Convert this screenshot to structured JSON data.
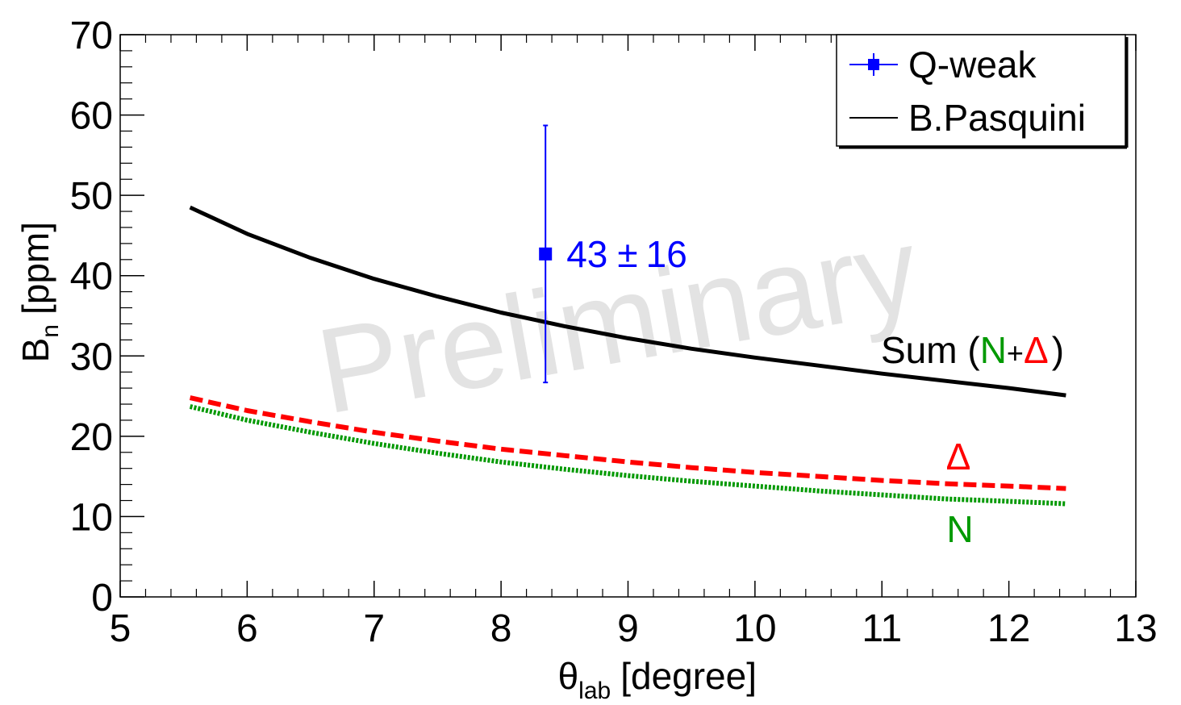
{
  "chart_data": {
    "type": "line",
    "xlabel": "θ",
    "xlabel_sub": "lab",
    "xlabel_unit": "[degree]",
    "ylabel": "B",
    "ylabel_sub": "n",
    "ylabel_unit": "[ppm]",
    "xlim": [
      5,
      13
    ],
    "ylim": [
      0,
      70
    ],
    "x_ticks": [
      "5",
      "6",
      "7",
      "8",
      "9",
      "10",
      "11",
      "12",
      "13"
    ],
    "y_ticks": [
      "0",
      "10",
      "20",
      "30",
      "40",
      "50",
      "60",
      "70"
    ],
    "grid": false,
    "legend_position": "top-right",
    "legend": [
      {
        "label": "Q-weak",
        "color": "#0000ff",
        "style": "marker-errorbar"
      },
      {
        "label": "B.Pasquini",
        "color": "#000000",
        "style": "solid"
      }
    ],
    "point": {
      "name": "Q-weak",
      "x": 8.35,
      "y": 42.7,
      "err": 16,
      "label_value": "43",
      "label_pm": "±",
      "label_err": "16",
      "color": "#0000ff"
    },
    "x": [
      5.55,
      6.0,
      6.5,
      7.0,
      7.5,
      8.0,
      8.5,
      9.0,
      9.5,
      10.0,
      10.5,
      11.0,
      11.5,
      12.0,
      12.45
    ],
    "series": [
      {
        "name": "B.Pasquini",
        "color": "#000000",
        "style": "solid",
        "values": [
          48.5,
          45.2,
          42.2,
          39.6,
          37.4,
          35.4,
          33.7,
          32.2,
          30.9,
          29.8,
          28.8,
          27.8,
          26.9,
          26.0,
          25.1
        ]
      },
      {
        "color": "#ff0000",
        "style": "dashed",
        "values": [
          24.8,
          23.2,
          21.8,
          20.5,
          19.4,
          18.4,
          17.6,
          16.8,
          16.1,
          15.5,
          15.0,
          14.5,
          14.1,
          13.8,
          13.5
        ]
      },
      {
        "color": "#009900",
        "style": "dotted",
        "values": [
          23.7,
          22.0,
          20.5,
          19.1,
          17.9,
          16.8,
          15.9,
          15.1,
          14.4,
          13.8,
          13.2,
          12.7,
          12.2,
          11.9,
          11.6
        ]
      }
    ],
    "annotations": {
      "sum_prefix": "Sum (",
      "sum_n": "N",
      "sum_plus": "+",
      "sum_delta": "Δ",
      "sum_suffix": ")",
      "delta_label": "Δ",
      "n_label": "N"
    },
    "watermark": "Preliminary",
    "colors": {
      "sum": "#000000",
      "delta": "#ff0000",
      "n": "#009900",
      "qweak": "#0000ff"
    }
  }
}
